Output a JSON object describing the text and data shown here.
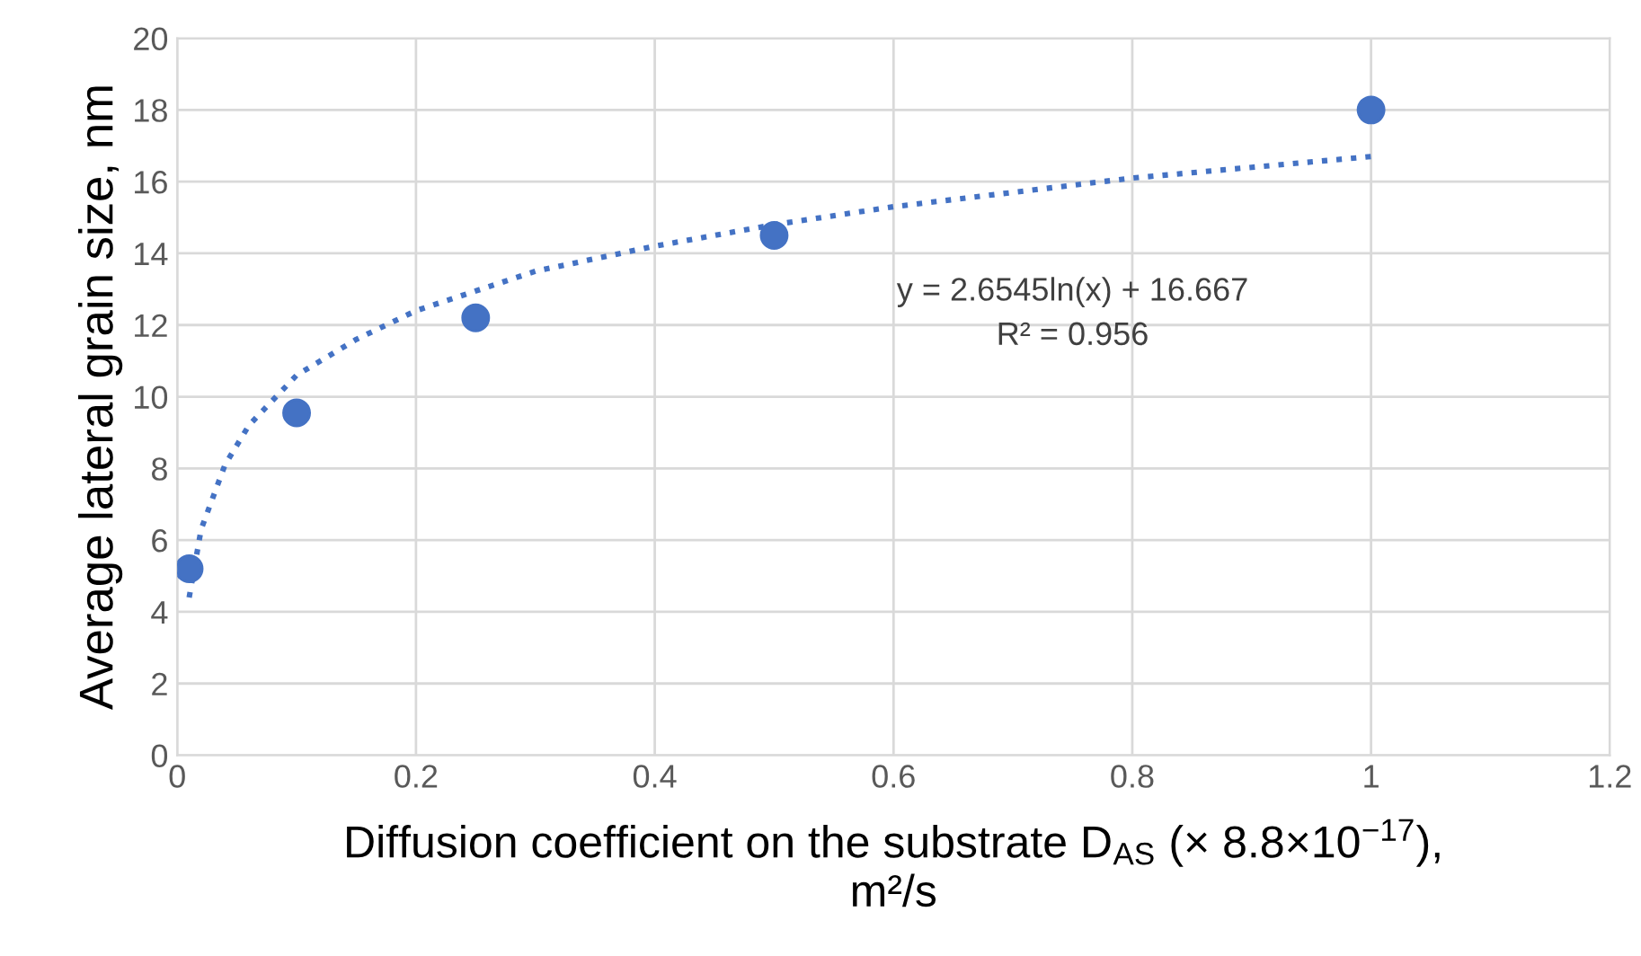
{
  "chart_data": {
    "type": "scatter",
    "xlabel": "Diffusion coefficient on the substrate D$_{AS}$ (× 8.8×10$^{−17}$),\nm²/s",
    "ylabel": "Average lateral grain size, nm",
    "series": [
      {
        "color": "#4472c4",
        "marker": "circle",
        "x": [
          0.01,
          0.1,
          0.25,
          0.5,
          1
        ],
        "values": [
          5.2,
          9.55,
          12.2,
          14.5,
          18
        ]
      },
      {
        "type": "line",
        "color": "#4472c4",
        "line_style": "dotted",
        "marker": "none",
        "x": [
          0.01,
          0.02,
          0.04,
          0.06,
          0.1,
          0.15,
          0.2,
          0.3,
          0.4,
          0.5,
          0.6,
          0.7,
          0.8,
          0.9,
          1
        ],
        "values": [
          4.4,
          6.3,
          8.1,
          9.2,
          10.6,
          11.6,
          12.4,
          13.5,
          14.2,
          14.8,
          15.3,
          15.7,
          16.1,
          16.4,
          16.7
        ]
      }
    ],
    "annotations": [
      "y = 2.6545ln(x) + 16.667\nR² = 0.956"
    ],
    "xlim": [
      0,
      1.2
    ],
    "xticks": [
      0,
      0.2,
      0.4,
      0.6,
      0.8,
      1,
      1.2
    ],
    "ylim": [
      0,
      20
    ],
    "yticks": [
      0,
      2,
      4,
      6,
      8,
      10,
      12,
      14,
      16,
      18,
      20
    ],
    "grid": true,
    "legend": false
  }
}
